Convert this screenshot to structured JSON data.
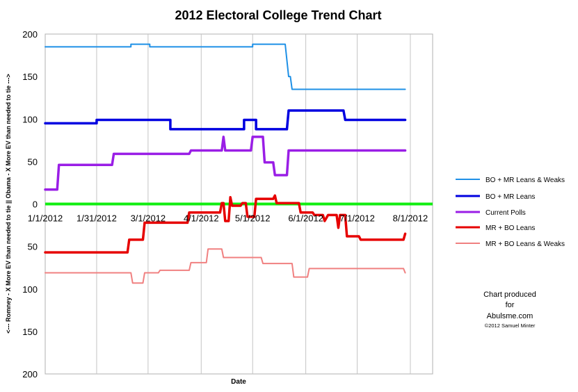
{
  "chart_data": {
    "type": "line",
    "title": "2012 Electoral College Trend Chart",
    "xlabel": "Date",
    "ylabel": "<--- Romney - X More EV than needed to tie || Obama - X More EV than needed to tie --->",
    "x_ticks": [
      "1/1/2012",
      "1/31/2012",
      "3/1/2012",
      "4/1/2012",
      "5/1/2012",
      "6/1/2012",
      "7/1/2012",
      "8/1/2012"
    ],
    "y_ticks": [
      {
        "value": 200,
        "label": "200"
      },
      {
        "value": 150,
        "label": "150"
      },
      {
        "value": 100,
        "label": "100"
      },
      {
        "value": 50,
        "label": "50"
      },
      {
        "value": 0,
        "label": "0"
      },
      {
        "value": -50,
        "label": "50"
      },
      {
        "value": -100,
        "label": "100"
      },
      {
        "value": -150,
        "label": "150"
      },
      {
        "value": -200,
        "label": "200"
      }
    ],
    "xlim": [
      "2012-01-01",
      "2012-08-14"
    ],
    "ylim": [
      -200,
      200
    ],
    "grid": "vertical",
    "legend": "right",
    "series": [
      {
        "name": "BO + MR Leans & Weaks",
        "color": "#1e90e6",
        "style": "thin",
        "points": [
          [
            "2012-01-01",
            185
          ],
          [
            "2012-02-20",
            185
          ],
          [
            "2012-02-20",
            188
          ],
          [
            "2012-03-02",
            188
          ],
          [
            "2012-03-02",
            185
          ],
          [
            "2012-05-01",
            185
          ],
          [
            "2012-05-01",
            188
          ],
          [
            "2012-05-20",
            188
          ],
          [
            "2012-05-22",
            150
          ],
          [
            "2012-05-23",
            150
          ],
          [
            "2012-05-24",
            135
          ],
          [
            "2012-07-29",
            135
          ]
        ]
      },
      {
        "name": "BO + MR Leans",
        "color": "#0000e0",
        "style": "thick",
        "points": [
          [
            "2012-01-01",
            95
          ],
          [
            "2012-01-31",
            95
          ],
          [
            "2012-01-31",
            99
          ],
          [
            "2012-03-14",
            99
          ],
          [
            "2012-03-14",
            88
          ],
          [
            "2012-04-26",
            88
          ],
          [
            "2012-04-26",
            99
          ],
          [
            "2012-05-03",
            99
          ],
          [
            "2012-05-03",
            88
          ],
          [
            "2012-05-21",
            88
          ],
          [
            "2012-05-22",
            110
          ],
          [
            "2012-06-23",
            110
          ],
          [
            "2012-06-24",
            99
          ],
          [
            "2012-07-29",
            99
          ]
        ]
      },
      {
        "name": "Current Polls",
        "color": "#9a1ee6",
        "style": "thick",
        "points": [
          [
            "2012-01-01",
            17
          ],
          [
            "2012-01-08",
            17
          ],
          [
            "2012-01-09",
            46
          ],
          [
            "2012-02-09",
            46
          ],
          [
            "2012-02-10",
            59
          ],
          [
            "2012-03-25",
            59
          ],
          [
            "2012-03-26",
            63
          ],
          [
            "2012-04-13",
            63
          ],
          [
            "2012-04-14",
            79
          ],
          [
            "2012-04-15",
            63
          ],
          [
            "2012-04-30",
            63
          ],
          [
            "2012-05-01",
            79
          ],
          [
            "2012-05-07",
            79
          ],
          [
            "2012-05-08",
            49
          ],
          [
            "2012-05-13",
            49
          ],
          [
            "2012-05-14",
            34
          ],
          [
            "2012-05-21",
            34
          ],
          [
            "2012-05-22",
            63
          ],
          [
            "2012-07-29",
            63
          ]
        ]
      },
      {
        "name": "MR + BO Leans",
        "color": "#e60000",
        "style": "thick",
        "points": [
          [
            "2012-01-01",
            -57
          ],
          [
            "2012-02-18",
            -57
          ],
          [
            "2012-02-19",
            -42
          ],
          [
            "2012-02-27",
            -42
          ],
          [
            "2012-02-28",
            -22
          ],
          [
            "2012-03-24",
            -22
          ],
          [
            "2012-03-25",
            -10
          ],
          [
            "2012-04-12",
            -10
          ],
          [
            "2012-04-13",
            1
          ],
          [
            "2012-04-14",
            1
          ],
          [
            "2012-04-15",
            -20
          ],
          [
            "2012-04-17",
            -20
          ],
          [
            "2012-04-18",
            8
          ],
          [
            "2012-04-19",
            -2
          ],
          [
            "2012-04-24",
            -2
          ],
          [
            "2012-04-25",
            1
          ],
          [
            "2012-04-27",
            1
          ],
          [
            "2012-04-28",
            -15
          ],
          [
            "2012-05-02",
            -15
          ],
          [
            "2012-05-03",
            6
          ],
          [
            "2012-05-13",
            6
          ],
          [
            "2012-05-14",
            10
          ],
          [
            "2012-05-15",
            1
          ],
          [
            "2012-05-28",
            1
          ],
          [
            "2012-05-29",
            -10
          ],
          [
            "2012-06-05",
            -10
          ],
          [
            "2012-06-06",
            -13
          ],
          [
            "2012-06-11",
            -13
          ],
          [
            "2012-06-12",
            -20
          ],
          [
            "2012-06-14",
            -13
          ],
          [
            "2012-06-19",
            -13
          ],
          [
            "2012-06-20",
            -28
          ],
          [
            "2012-06-21",
            -13
          ],
          [
            "2012-06-24",
            -13
          ],
          [
            "2012-06-25",
            -38
          ],
          [
            "2012-07-02",
            -38
          ],
          [
            "2012-07-03",
            -42
          ],
          [
            "2012-07-28",
            -42
          ],
          [
            "2012-07-29",
            -35
          ]
        ]
      },
      {
        "name": "MR + BO Leans & Weaks",
        "color": "#f08080",
        "style": "thin",
        "points": [
          [
            "2012-01-01",
            -81
          ],
          [
            "2012-02-20",
            -81
          ],
          [
            "2012-02-21",
            -93
          ],
          [
            "2012-02-27",
            -93
          ],
          [
            "2012-02-28",
            -81
          ],
          [
            "2012-03-07",
            -81
          ],
          [
            "2012-03-08",
            -78
          ],
          [
            "2012-03-25",
            -78
          ],
          [
            "2012-03-26",
            -69
          ],
          [
            "2012-04-04",
            -69
          ],
          [
            "2012-04-05",
            -53
          ],
          [
            "2012-04-13",
            -53
          ],
          [
            "2012-04-14",
            -63
          ],
          [
            "2012-05-06",
            -63
          ],
          [
            "2012-05-07",
            -70
          ],
          [
            "2012-05-24",
            -70
          ],
          [
            "2012-05-25",
            -86
          ],
          [
            "2012-06-02",
            -86
          ],
          [
            "2012-06-03",
            -76
          ],
          [
            "2012-07-28",
            -76
          ],
          [
            "2012-07-29",
            -81
          ]
        ]
      }
    ],
    "zero_line_color": "#11ee11",
    "annotation": {
      "line1": "Chart produced",
      "line2": "for",
      "line3": "Abulsme.com",
      "line4": "©2012 Samuel Minter"
    }
  }
}
